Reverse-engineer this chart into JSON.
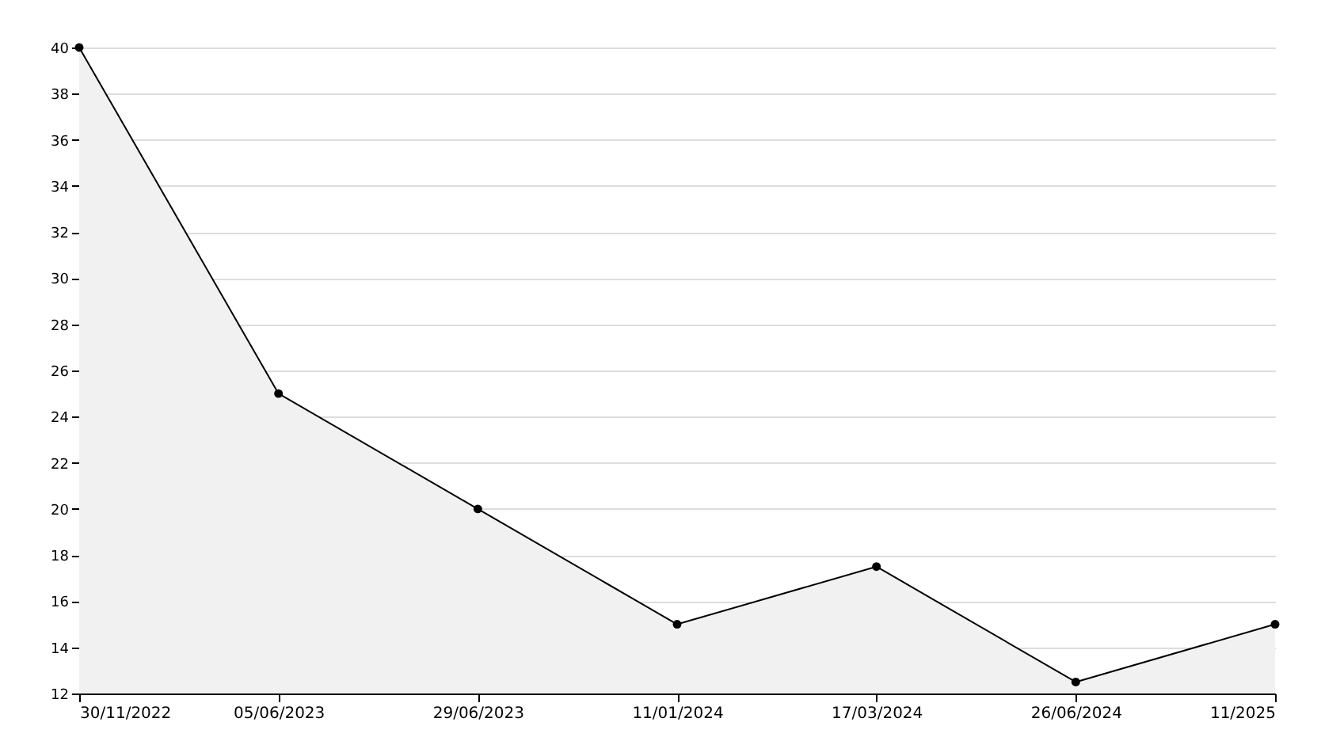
{
  "chart_data": {
    "type": "area",
    "categories": [
      "30/11/2022",
      "05/06/2023",
      "29/06/2023",
      "11/01/2024",
      "17/03/2024",
      "26/06/2024",
      "11/2025"
    ],
    "series": [
      {
        "color": "#000000",
        "values": [
          40,
          25,
          20,
          15,
          17.5,
          12.5,
          15
        ]
      }
    ],
    "ylim": [
      12,
      40
    ],
    "yticks": [
      12,
      14,
      16,
      18,
      20,
      22,
      24,
      26,
      28,
      30,
      32,
      34,
      36,
      38,
      40
    ],
    "grid": "y",
    "marker": "circle"
  }
}
